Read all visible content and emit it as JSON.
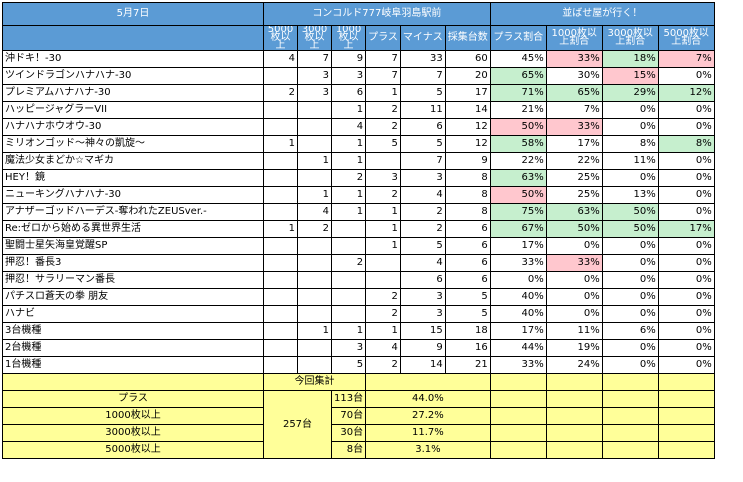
{
  "header": {
    "date": "5月7日",
    "store": "コンコルド777岐阜羽島駅前",
    "brand": "並ばせ屋が行く！",
    "col_5000": "5000枚以上",
    "col_3000": "3000枚以上",
    "col_1000": "1000枚以上",
    "col_plus": "プラス",
    "col_minus": "マイナス",
    "col_total": "採集台数",
    "col_plus_rate": "プラス割合",
    "col_1000_rate": "1000枚以上割合",
    "col_3000_rate": "3000枚以上割合",
    "col_5000_rate": "5000枚以上割合"
  },
  "rows": [
    {
      "name": "沖ドキ！-30",
      "c5000": "4",
      "c3000": "7",
      "c1000": "9",
      "plus": "7",
      "minus": "33",
      "total": "60",
      "r_plus": "45%",
      "r_1000": "33%",
      "r_3000": "18%",
      "r_5000": "7%",
      "h_plus": "",
      "h_1000": "red",
      "h_3000": "green",
      "h_5000": "red"
    },
    {
      "name": "ツインドラゴンハナハナ-30",
      "c5000": "",
      "c3000": "3",
      "c1000": "3",
      "plus": "7",
      "minus": "7",
      "total": "20",
      "r_plus": "65%",
      "r_1000": "30%",
      "r_3000": "15%",
      "r_5000": "0%",
      "h_plus": "green",
      "h_1000": "",
      "h_3000": "red",
      "h_5000": ""
    },
    {
      "name": "プレミアムハナハナ-30",
      "c5000": "2",
      "c3000": "3",
      "c1000": "6",
      "plus": "1",
      "minus": "5",
      "total": "17",
      "r_plus": "71%",
      "r_1000": "65%",
      "r_3000": "29%",
      "r_5000": "12%",
      "h_plus": "green",
      "h_1000": "green",
      "h_3000": "green",
      "h_5000": "green"
    },
    {
      "name": "ハッピージャグラーVII",
      "c5000": "",
      "c3000": "",
      "c1000": "1",
      "plus": "2",
      "minus": "11",
      "total": "14",
      "r_plus": "21%",
      "r_1000": "7%",
      "r_3000": "0%",
      "r_5000": "0%",
      "h_plus": "",
      "h_1000": "",
      "h_3000": "",
      "h_5000": ""
    },
    {
      "name": "ハナハナホウオウ-30",
      "c5000": "",
      "c3000": "",
      "c1000": "4",
      "plus": "2",
      "minus": "6",
      "total": "12",
      "r_plus": "50%",
      "r_1000": "33%",
      "r_3000": "0%",
      "r_5000": "0%",
      "h_plus": "red",
      "h_1000": "red",
      "h_3000": "",
      "h_5000": ""
    },
    {
      "name": "ミリオンゴッド～神々の凱旋～",
      "c5000": "1",
      "c3000": "",
      "c1000": "1",
      "plus": "5",
      "minus": "5",
      "total": "12",
      "r_plus": "58%",
      "r_1000": "17%",
      "r_3000": "8%",
      "r_5000": "8%",
      "h_plus": "green",
      "h_1000": "",
      "h_3000": "",
      "h_5000": "green"
    },
    {
      "name": "魔法少女まどか☆マギカ",
      "c5000": "",
      "c3000": "1",
      "c1000": "1",
      "plus": "",
      "minus": "7",
      "total": "9",
      "r_plus": "22%",
      "r_1000": "22%",
      "r_3000": "11%",
      "r_5000": "0%",
      "h_plus": "",
      "h_1000": "",
      "h_3000": "",
      "h_5000": ""
    },
    {
      "name": "HEY！鏡",
      "c5000": "",
      "c3000": "",
      "c1000": "2",
      "plus": "3",
      "minus": "3",
      "total": "8",
      "r_plus": "63%",
      "r_1000": "25%",
      "r_3000": "0%",
      "r_5000": "0%",
      "h_plus": "green",
      "h_1000": "",
      "h_3000": "",
      "h_5000": ""
    },
    {
      "name": "ニューキングハナハナ-30",
      "c5000": "",
      "c3000": "1",
      "c1000": "1",
      "plus": "2",
      "minus": "4",
      "total": "8",
      "r_plus": "50%",
      "r_1000": "25%",
      "r_3000": "13%",
      "r_5000": "0%",
      "h_plus": "red",
      "h_1000": "",
      "h_3000": "",
      "h_5000": ""
    },
    {
      "name": "アナザーゴッドハーデス-奪われたZEUSver.-",
      "c5000": "",
      "c3000": "4",
      "c1000": "1",
      "plus": "1",
      "minus": "2",
      "total": "8",
      "r_plus": "75%",
      "r_1000": "63%",
      "r_3000": "50%",
      "r_5000": "0%",
      "h_plus": "green",
      "h_1000": "green",
      "h_3000": "green",
      "h_5000": ""
    },
    {
      "name": "Re:ゼロから始める異世界生活",
      "c5000": "1",
      "c3000": "2",
      "c1000": "",
      "plus": "1",
      "minus": "2",
      "total": "6",
      "r_plus": "67%",
      "r_1000": "50%",
      "r_3000": "50%",
      "r_5000": "17%",
      "h_plus": "green",
      "h_1000": "green",
      "h_3000": "green",
      "h_5000": "green"
    },
    {
      "name": "聖闘士星矢海皇覚醒SP",
      "c5000": "",
      "c3000": "",
      "c1000": "",
      "plus": "1",
      "minus": "5",
      "total": "6",
      "r_plus": "17%",
      "r_1000": "0%",
      "r_3000": "0%",
      "r_5000": "0%",
      "h_plus": "",
      "h_1000": "",
      "h_3000": "",
      "h_5000": ""
    },
    {
      "name": "押忍！番長3",
      "c5000": "",
      "c3000": "",
      "c1000": "2",
      "plus": "",
      "minus": "4",
      "total": "6",
      "r_plus": "33%",
      "r_1000": "33%",
      "r_3000": "0%",
      "r_5000": "0%",
      "h_plus": "",
      "h_1000": "red",
      "h_3000": "",
      "h_5000": ""
    },
    {
      "name": "押忍！サラリーマン番長",
      "c5000": "",
      "c3000": "",
      "c1000": "",
      "plus": "",
      "minus": "6",
      "total": "6",
      "r_plus": "0%",
      "r_1000": "0%",
      "r_3000": "0%",
      "r_5000": "0%",
      "h_plus": "",
      "h_1000": "",
      "h_3000": "",
      "h_5000": ""
    },
    {
      "name": "パチスロ蒼天の拳 朋友",
      "c5000": "",
      "c3000": "",
      "c1000": "",
      "plus": "2",
      "minus": "3",
      "total": "5",
      "r_plus": "40%",
      "r_1000": "0%",
      "r_3000": "0%",
      "r_5000": "0%",
      "h_plus": "",
      "h_1000": "",
      "h_3000": "",
      "h_5000": ""
    },
    {
      "name": "ハナビ",
      "c5000": "",
      "c3000": "",
      "c1000": "",
      "plus": "2",
      "minus": "3",
      "total": "5",
      "r_plus": "40%",
      "r_1000": "0%",
      "r_3000": "0%",
      "r_5000": "0%",
      "h_plus": "",
      "h_1000": "",
      "h_3000": "",
      "h_5000": ""
    },
    {
      "name": "3台機種",
      "c5000": "",
      "c3000": "1",
      "c1000": "1",
      "plus": "1",
      "minus": "15",
      "total": "18",
      "r_plus": "17%",
      "r_1000": "11%",
      "r_3000": "6%",
      "r_5000": "0%",
      "h_plus": "",
      "h_1000": "",
      "h_3000": "",
      "h_5000": ""
    },
    {
      "name": "2台機種",
      "c5000": "",
      "c3000": "",
      "c1000": "3",
      "plus": "4",
      "minus": "9",
      "total": "16",
      "r_plus": "44%",
      "r_1000": "19%",
      "r_3000": "0%",
      "r_5000": "0%",
      "h_plus": "",
      "h_1000": "",
      "h_3000": "",
      "h_5000": ""
    },
    {
      "name": "1台機種",
      "c5000": "",
      "c3000": "",
      "c1000": "5",
      "plus": "2",
      "minus": "14",
      "total": "21",
      "r_plus": "33%",
      "r_1000": "24%",
      "r_3000": "0%",
      "r_5000": "0%",
      "h_plus": "",
      "h_1000": "",
      "h_3000": "",
      "h_5000": ""
    }
  ],
  "summary": {
    "title": "今回集計",
    "total": "257台",
    "items": [
      {
        "label": "プラス",
        "count": "113台",
        "pct": "44.0%"
      },
      {
        "label": "1000枚以上",
        "count": "70台",
        "pct": "27.2%"
      },
      {
        "label": "3000枚以上",
        "count": "30台",
        "pct": "11.7%"
      },
      {
        "label": "5000枚以上",
        "count": "8台",
        "pct": "3.1%"
      }
    ]
  },
  "colors": {
    "header": "#5b9bd5",
    "good": "#c6efce",
    "bad": "#ffc7ce",
    "summary": "#ffff99"
  }
}
